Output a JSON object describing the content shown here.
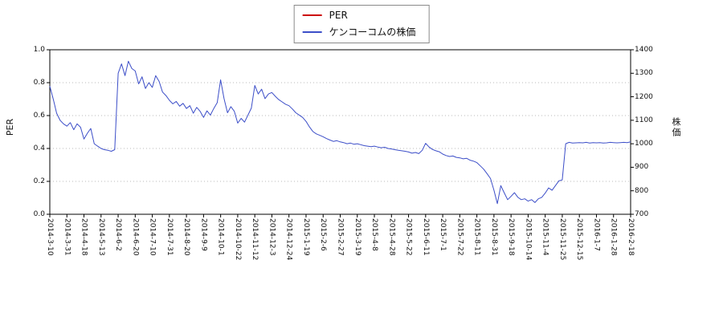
{
  "chart_data": {
    "type": "line",
    "title": "",
    "legend_position": "top-center",
    "grid": "dotted horizontal lines at left-axis ticks",
    "left_axis": {
      "label": "PER",
      "min": 0.0,
      "max": 1.0,
      "ticks": [
        0.0,
        0.2,
        0.4,
        0.6,
        0.8,
        1.0
      ]
    },
    "right_axis": {
      "label": "株価",
      "min": 700,
      "max": 1400,
      "ticks": [
        700,
        800,
        900,
        1000,
        1100,
        1200,
        1300,
        1400
      ]
    },
    "x_ticks": [
      "2014-3-10",
      "2014-3-31",
      "2014-4-18",
      "2014-5-13",
      "2014-6-2",
      "2014-6-20",
      "2014-7-10",
      "2014-7-31",
      "2014-8-20",
      "2014-9-9",
      "2014-10-1",
      "2014-10-22",
      "2014-11-12",
      "2014-12-3",
      "2014-12-24",
      "2015-1-19",
      "2015-2-6",
      "2015-2-27",
      "2015-3-19",
      "2015-4-8",
      "2015-4-28",
      "2015-5-22",
      "2015-6-11",
      "2015-7-1",
      "2015-7-22",
      "2015-8-11",
      "2015-8-31",
      "2015-9-18",
      "2015-10-14",
      "2015-11-4",
      "2015-11-25",
      "2015-12-15",
      "2016-1-7",
      "2016-1-28",
      "2016-2-18"
    ],
    "series": [
      {
        "name": "PER",
        "color": "#cc0000",
        "axis": "left",
        "visible_in_plot": false,
        "values": []
      },
      {
        "name": "ケンコーコムの株価",
        "color": "#3c4ec8",
        "axis": "right",
        "visible_in_plot": true,
        "values": [
          1245,
          1190,
          1130,
          1100,
          1085,
          1075,
          1090,
          1060,
          1085,
          1070,
          1020,
          1045,
          1065,
          1000,
          990,
          980,
          975,
          972,
          968,
          975,
          1300,
          1340,
          1290,
          1351,
          1320,
          1310,
          1255,
          1285,
          1235,
          1260,
          1240,
          1290,
          1265,
          1220,
          1205,
          1185,
          1170,
          1180,
          1160,
          1172,
          1150,
          1162,
          1130,
          1155,
          1138,
          1112,
          1140,
          1122,
          1150,
          1175,
          1272,
          1192,
          1132,
          1158,
          1138,
          1088,
          1108,
          1092,
          1122,
          1152,
          1248,
          1212,
          1232,
          1192,
          1212,
          1218,
          1202,
          1188,
          1178,
          1168,
          1162,
          1148,
          1132,
          1122,
          1112,
          1095,
          1072,
          1052,
          1042,
          1036,
          1030,
          1022,
          1016,
          1010,
          1013,
          1008,
          1005,
          1000,
          1003,
          998,
          1000,
          996,
          992,
          990,
          988,
          990,
          986,
          983,
          985,
          980,
          978,
          975,
          972,
          970,
          968,
          965,
          960,
          963,
          958,
          972,
          1002,
          986,
          976,
          970,
          966,
          956,
          950,
          946,
          948,
          942,
          940,
          936,
          938,
          930,
          926,
          920,
          906,
          892,
          872,
          852,
          802,
          745,
          822,
          792,
          762,
          776,
          792,
          772,
          762,
          766,
          756,
          762,
          750,
          766,
          772,
          790,
          812,
          802,
          822,
          842,
          846,
          1000,
          1006,
          1003,
          1004,
          1005,
          1004,
          1006,
          1003,
          1005,
          1004,
          1005,
          1003,
          1004,
          1006,
          1005,
          1004,
          1005,
          1006,
          1005,
          1008
        ]
      }
    ]
  }
}
